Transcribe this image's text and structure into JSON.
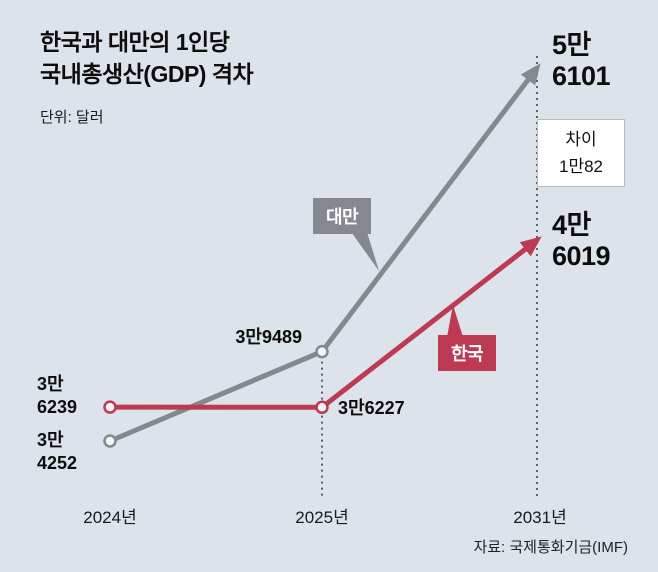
{
  "header": {
    "title_line1": "한국과 대만의 1인당",
    "title_line2": "국내총생산(GDP) 격차",
    "unit": "단위: 달러"
  },
  "chart_data": {
    "type": "line",
    "categories": [
      "2024년",
      "2025년",
      "2031년"
    ],
    "x_years": [
      2024,
      2025,
      2031
    ],
    "series": [
      {
        "name": "대만",
        "color": "#85888f",
        "values": [
          34252,
          39489,
          56101
        ]
      },
      {
        "name": "한국",
        "color": "#bc3a54",
        "values": [
          36239,
          36227,
          46019
        ]
      }
    ],
    "ylim": [
      34252,
      56101
    ],
    "grid": "off",
    "annotations": {
      "taiwan_end": {
        "line1": "5만",
        "line2": "6101"
      },
      "korea_end": {
        "line1": "4만",
        "line2": "6019"
      },
      "korea_start": {
        "line1": "3만",
        "line2": "6239"
      },
      "taiwan_start": {
        "line1": "3만",
        "line2": "4252"
      },
      "taiwan_mid": "3만9489",
      "korea_mid": "3만6227",
      "gap_line1": "차이",
      "gap_line2": "1만82"
    }
  },
  "source": "자료: 국제통화기금(IMF)"
}
